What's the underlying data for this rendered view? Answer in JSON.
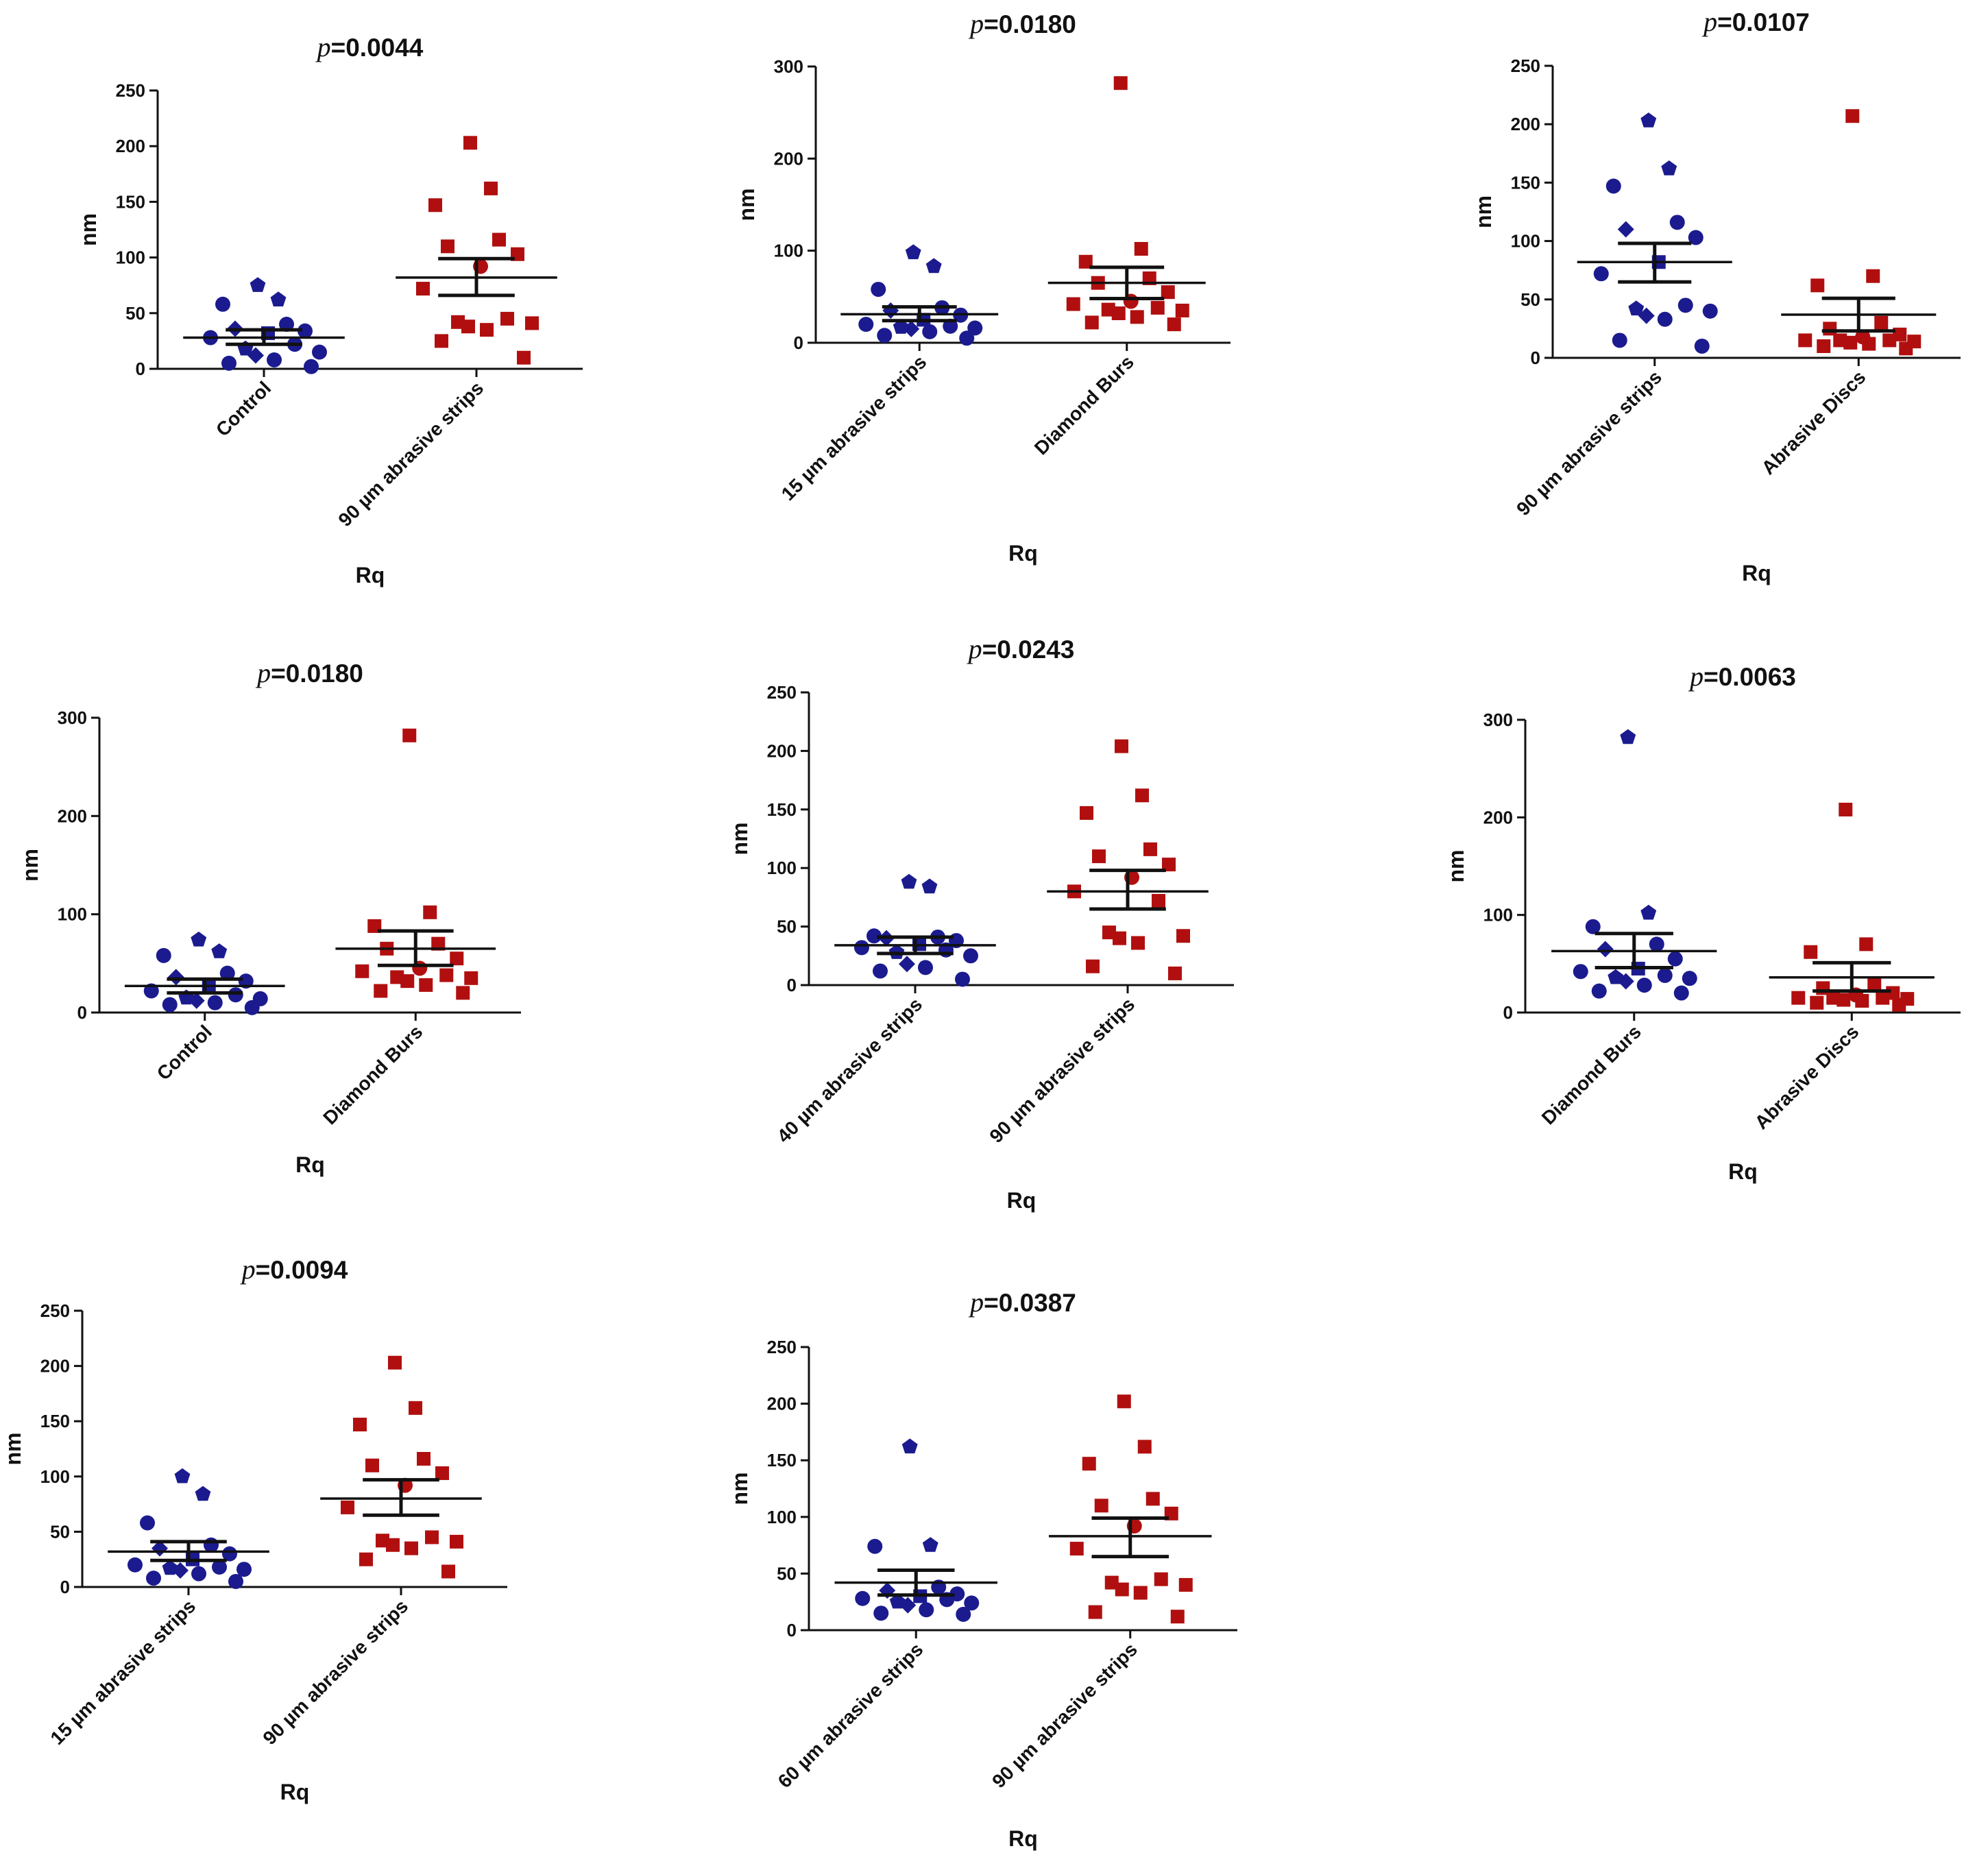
{
  "colors": {
    "group1": "#1b1b8f",
    "group2": "#b10f0f",
    "axis": "#111111"
  },
  "chart_data": [
    {
      "type": "scatter",
      "title": "p=0.0044",
      "title_parts": {
        "p": "p",
        "rest": "=0.0044"
      },
      "ylabel": "nm",
      "xlabel": "Rq",
      "ylim": [
        0,
        250
      ],
      "yticks": [
        0,
        50,
        100,
        150,
        200,
        250
      ],
      "categories": [
        "Control",
        "90 µm abrasive strips"
      ],
      "series": [
        {
          "values": [
            75,
            62,
            58,
            40,
            36,
            34,
            32,
            28,
            22,
            18,
            15,
            12,
            8,
            5,
            2
          ],
          "mean": 28,
          "sem_low": 22,
          "sem_high": 35
        },
        {
          "values": [
            203,
            162,
            147,
            116,
            110,
            103,
            92,
            72,
            45,
            42,
            41,
            38,
            35,
            25,
            10
          ],
          "mean": 82,
          "sem_low": 66,
          "sem_high": 99
        }
      ]
    },
    {
      "type": "scatter",
      "title": "p=0.0180",
      "title_parts": {
        "p": "p",
        "rest": "=0.0180"
      },
      "ylabel": "nm",
      "xlabel": "Rq",
      "ylim": [
        0,
        300
      ],
      "yticks": [
        0,
        100,
        200,
        300
      ],
      "categories": [
        "15 µm abrasive strips",
        "Diamond Burs"
      ],
      "series": [
        {
          "values": [
            98,
            83,
            58,
            38,
            35,
            30,
            25,
            20,
            18,
            17,
            16,
            15,
            12,
            8,
            5
          ],
          "mean": 31,
          "sem_low": 24,
          "sem_high": 39
        },
        {
          "values": [
            282,
            102,
            88,
            70,
            65,
            55,
            45,
            42,
            38,
            36,
            35,
            32,
            28,
            22,
            20
          ],
          "mean": 65,
          "sem_low": 48,
          "sem_high": 82
        }
      ]
    },
    {
      "type": "scatter",
      "title": "p=0.0107",
      "title_parts": {
        "p": "p",
        "rest": "=0.0107"
      },
      "ylabel": "nm",
      "xlabel": "Rq",
      "ylim": [
        0,
        250
      ],
      "yticks": [
        0,
        50,
        100,
        150,
        200,
        250
      ],
      "categories": [
        "90 µm abrasive strips",
        "Abrasive Discs"
      ],
      "series": [
        {
          "values": [
            203,
            162,
            147,
            116,
            110,
            103,
            82,
            72,
            45,
            42,
            40,
            36,
            33,
            15,
            10
          ],
          "mean": 82,
          "sem_low": 65,
          "sem_high": 98
        },
        {
          "values": [
            207,
            70,
            62,
            30,
            25,
            20,
            18,
            15,
            15,
            15,
            14,
            13,
            12,
            10,
            8
          ],
          "mean": 37,
          "sem_low": 23,
          "sem_high": 51
        }
      ]
    },
    {
      "type": "scatter",
      "title": "p=0.0180",
      "title_parts": {
        "p": "p",
        "rest": "=0.0180"
      },
      "ylabel": "nm",
      "xlabel": "Rq",
      "ylim": [
        0,
        300
      ],
      "yticks": [
        0,
        100,
        200,
        300
      ],
      "categories": [
        "Control",
        "Diamond Burs"
      ],
      "series": [
        {
          "values": [
            74,
            62,
            58,
            40,
            36,
            32,
            28,
            22,
            18,
            15,
            14,
            12,
            10,
            8,
            5
          ],
          "mean": 27,
          "sem_low": 20,
          "sem_high": 34
        },
        {
          "values": [
            282,
            102,
            88,
            70,
            65,
            55,
            45,
            42,
            38,
            36,
            35,
            32,
            28,
            22,
            20
          ],
          "mean": 65,
          "sem_low": 48,
          "sem_high": 83
        }
      ]
    },
    {
      "type": "scatter",
      "title": "p=0.0243",
      "title_parts": {
        "p": "p",
        "rest": "=0.0243"
      },
      "ylabel": "nm",
      "xlabel": "Rq",
      "ylim": [
        0,
        250
      ],
      "yticks": [
        0,
        50,
        100,
        150,
        200,
        250
      ],
      "categories": [
        "40 µm abrasive strips",
        "90 µm abrasive strips"
      ],
      "series": [
        {
          "values": [
            88,
            84,
            42,
            41,
            40,
            38,
            35,
            32,
            30,
            28,
            25,
            18,
            15,
            12,
            5
          ],
          "mean": 34,
          "sem_low": 27,
          "sem_high": 41
        },
        {
          "values": [
            204,
            162,
            147,
            116,
            110,
            103,
            92,
            80,
            72,
            45,
            42,
            40,
            36,
            16,
            10
          ],
          "mean": 80,
          "sem_low": 65,
          "sem_high": 98
        }
      ]
    },
    {
      "type": "scatter",
      "title": "p=0.0063",
      "title_parts": {
        "p": "p",
        "rest": "=0.0063"
      },
      "ylabel": "nm",
      "xlabel": "Rq",
      "ylim": [
        0,
        300
      ],
      "yticks": [
        0,
        100,
        200,
        300
      ],
      "categories": [
        "Diamond Burs",
        "Abrasive Discs"
      ],
      "series": [
        {
          "values": [
            282,
            102,
            88,
            70,
            65,
            55,
            45,
            42,
            38,
            36,
            35,
            32,
            28,
            22,
            20
          ],
          "mean": 63,
          "sem_low": 46,
          "sem_high": 81
        },
        {
          "values": [
            208,
            70,
            62,
            30,
            25,
            20,
            18,
            15,
            15,
            15,
            14,
            13,
            12,
            10,
            8
          ],
          "mean": 36,
          "sem_low": 22,
          "sem_high": 51
        }
      ]
    },
    {
      "type": "scatter",
      "title": "p=0.0094",
      "title_parts": {
        "p": "p",
        "rest": "=0.0094"
      },
      "ylabel": "nm",
      "xlabel": "Rq",
      "ylim": [
        0,
        250
      ],
      "yticks": [
        0,
        50,
        100,
        150,
        200,
        250
      ],
      "categories": [
        "15 µm abrasive strips",
        "90 µm abrasive strips"
      ],
      "series": [
        {
          "values": [
            100,
            84,
            58,
            38,
            35,
            30,
            25,
            20,
            18,
            17,
            16,
            15,
            12,
            8,
            5
          ],
          "mean": 32,
          "sem_low": 24,
          "sem_high": 41
        },
        {
          "values": [
            203,
            162,
            147,
            116,
            110,
            103,
            92,
            72,
            45,
            42,
            41,
            38,
            35,
            25,
            14
          ],
          "mean": 80,
          "sem_low": 65,
          "sem_high": 97
        }
      ]
    },
    {
      "type": "scatter",
      "title": "p=0.0387",
      "title_parts": {
        "p": "p",
        "rest": "=0.0387"
      },
      "ylabel": "nm",
      "xlabel": "Rq",
      "ylim": [
        0,
        250
      ],
      "yticks": [
        0,
        50,
        100,
        150,
        200,
        250
      ],
      "categories": [
        "60 µm abrasive strips",
        "90 µm abrasive strips"
      ],
      "series": [
        {
          "values": [
            162,
            75,
            74,
            38,
            35,
            32,
            30,
            28,
            27,
            25,
            24,
            22,
            18,
            15,
            14
          ],
          "mean": 42,
          "sem_low": 31,
          "sem_high": 53
        },
        {
          "values": [
            202,
            162,
            147,
            116,
            110,
            103,
            92,
            72,
            45,
            42,
            40,
            36,
            33,
            16,
            12
          ],
          "mean": 83,
          "sem_low": 65,
          "sem_high": 99
        }
      ]
    }
  ]
}
